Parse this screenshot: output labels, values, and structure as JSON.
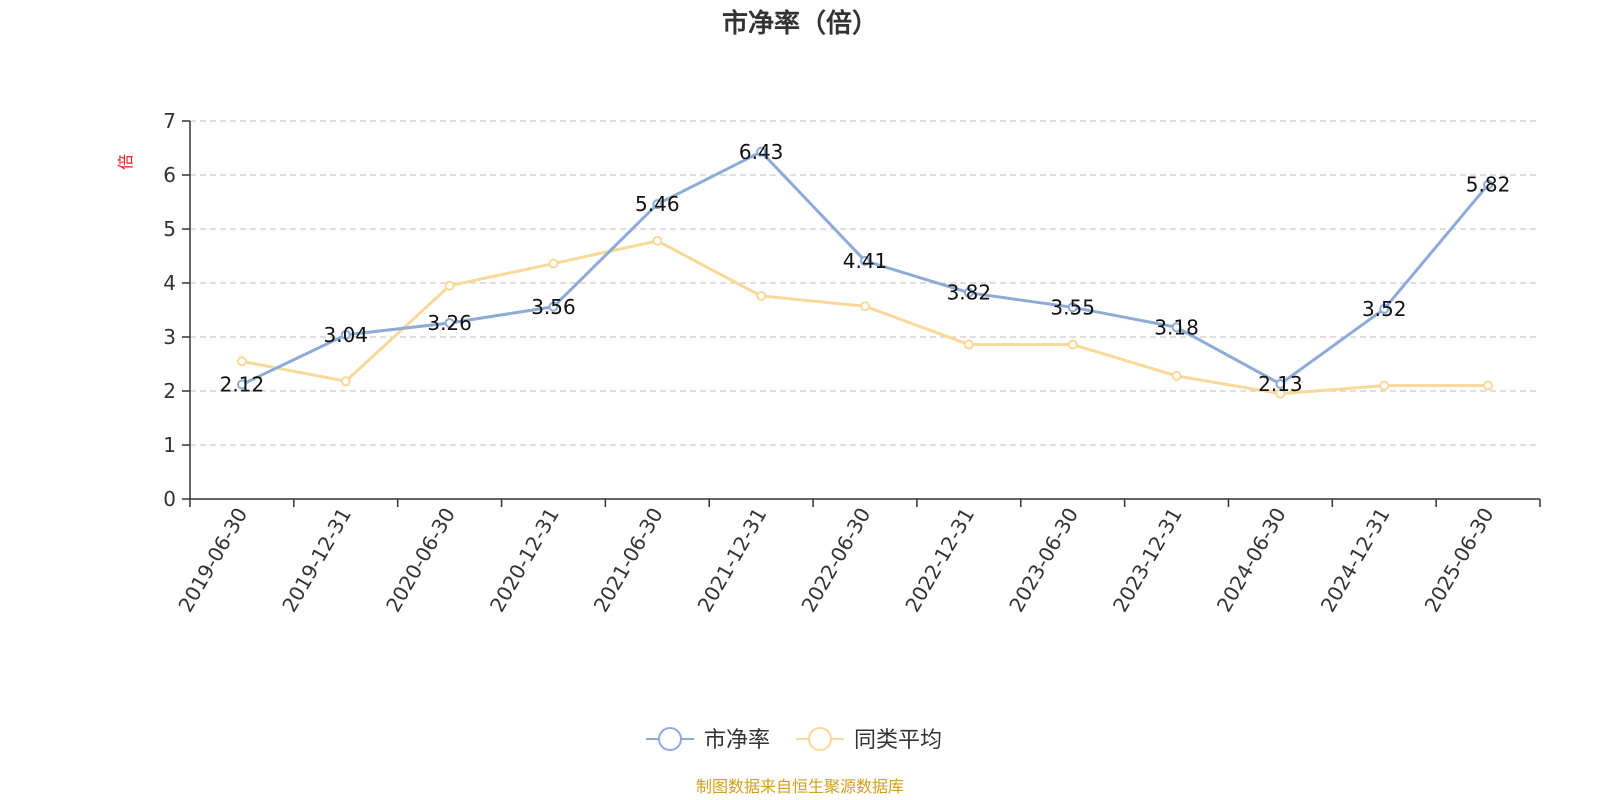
{
  "chart_data": {
    "type": "line",
    "title": "市净率（倍）",
    "ylabel": "倍",
    "xlabel": "",
    "categories": [
      "2019-06-30",
      "2019-12-31",
      "2020-06-30",
      "2020-12-31",
      "2021-06-30",
      "2021-12-31",
      "2022-06-30",
      "2022-12-31",
      "2023-06-30",
      "2023-12-31",
      "2024-06-30",
      "2024-12-31",
      "2025-06-30"
    ],
    "ylim": [
      0,
      7
    ],
    "yticks": [
      0,
      1,
      2,
      3,
      4,
      5,
      6,
      7
    ],
    "grid": true,
    "legend_position": "bottom",
    "series": [
      {
        "name": "市净率",
        "color": "#8eabd6",
        "values": [
          2.12,
          3.04,
          3.26,
          3.56,
          5.46,
          6.43,
          4.41,
          3.82,
          3.55,
          3.18,
          2.13,
          3.52,
          5.82
        ],
        "labels": [
          "2.12",
          "3.04",
          "3.26",
          "3.56",
          "5.46",
          "6.43",
          "4.41",
          "3.82",
          "3.55",
          "3.18",
          "2.13",
          "3.52",
          "5.82"
        ],
        "show_labels": true
      },
      {
        "name": "同类平均",
        "color": "#f9d89a",
        "values": [
          2.55,
          2.18,
          3.95,
          4.36,
          4.78,
          3.76,
          3.57,
          2.86,
          2.86,
          2.28,
          1.95,
          2.1,
          2.1
        ],
        "show_labels": false
      }
    ]
  },
  "footer": {
    "source": "制图数据来自恒生聚源数据库",
    "source_color": "#d4a01c"
  },
  "colors": {
    "ylabel": "#e02020",
    "axis": "#333333",
    "grid": "#cccccc"
  }
}
